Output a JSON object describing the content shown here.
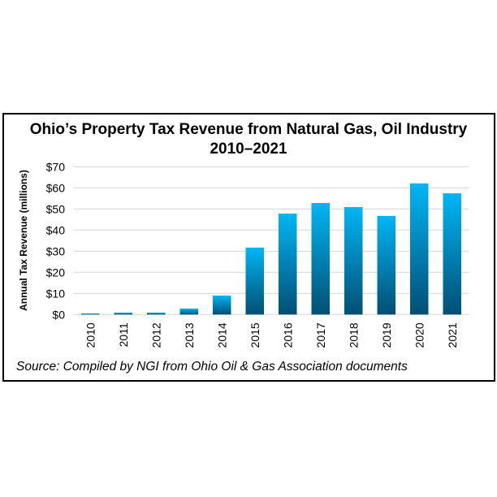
{
  "chart_data": {
    "type": "bar",
    "title": "Ohio’s Property Tax Revenue from Natural Gas, Oil Industry",
    "subtitle": "2010–2021",
    "xlabel": "",
    "ylabel": "Annual Tax Revenue (millions)",
    "categories": [
      "2010",
      "2011",
      "2012",
      "2013",
      "2014",
      "2015",
      "2016",
      "2017",
      "2018",
      "2019",
      "2020",
      "2021"
    ],
    "values": [
      0.5,
      0.9,
      0.9,
      2.8,
      9.0,
      31.7,
      47.8,
      52.8,
      50.9,
      46.7,
      62.1,
      57.4
    ],
    "ylim": [
      0,
      70
    ],
    "yticks": [
      "$0",
      "$10",
      "$20",
      "$30",
      "$40",
      "$50",
      "$60",
      "$70"
    ],
    "grid": true,
    "bar_color_top": "#00b6f5",
    "bar_color_bottom": "#004f73",
    "source": "Source: Compiled by NGI from Ohio Oil & Gas Association documents"
  }
}
